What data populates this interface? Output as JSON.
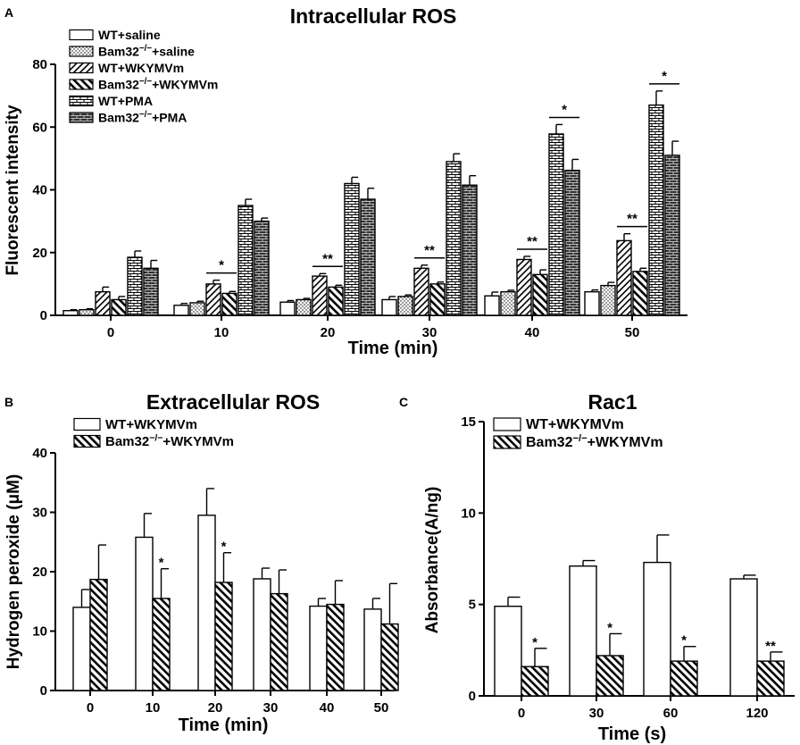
{
  "chart_data": [
    {
      "panel": "A",
      "type": "bar",
      "title": "Intracellular ROS",
      "xlabel": "Time (min)",
      "ylabel": "Fluorescent intensity",
      "ylim": [
        0,
        80
      ],
      "yticks": [
        0,
        20,
        40,
        60,
        80
      ],
      "categories": [
        "0",
        "10",
        "20",
        "30",
        "40",
        "50"
      ],
      "series": [
        {
          "name_main": "WT+saline",
          "name_sup": "",
          "name_tail": "",
          "pattern": "white",
          "values": [
            1.5,
            3.2,
            4.2,
            5.0,
            6.2,
            7.5
          ],
          "errors": [
            0.3,
            0.6,
            0.5,
            1.0,
            1.2,
            0.6
          ]
        },
        {
          "name_main": "Bam32",
          "name_sup": "−/−",
          "name_tail": "+saline",
          "pattern": "dots",
          "values": [
            1.8,
            4.0,
            5.0,
            6.0,
            7.5,
            9.5
          ],
          "errors": [
            0.3,
            0.5,
            0.4,
            0.5,
            0.5,
            1.0
          ]
        },
        {
          "name_main": "WT+WKYMVm",
          "name_sup": "",
          "name_tail": "",
          "pattern": "diag",
          "values": [
            7.5,
            10.0,
            12.5,
            15.0,
            17.8,
            23.8
          ],
          "errors": [
            1.5,
            1.2,
            0.8,
            1.0,
            1.0,
            2.2
          ]
        },
        {
          "name_main": "Bam32",
          "name_sup": "−/−",
          "name_tail": "+WKYMVm",
          "pattern": "bdiag",
          "values": [
            5.0,
            7.0,
            9.0,
            10.0,
            13.0,
            14.0
          ],
          "errors": [
            1.0,
            0.6,
            0.6,
            0.6,
            1.5,
            1.0
          ]
        },
        {
          "name_main": "WT+PMA",
          "name_sup": "",
          "name_tail": "",
          "pattern": "brick",
          "values": [
            18.5,
            35.0,
            42.0,
            49.0,
            57.8,
            67.0
          ],
          "errors": [
            2.0,
            2.0,
            2.0,
            2.5,
            3.0,
            4.5
          ]
        },
        {
          "name_main": "Bam32",
          "name_sup": "−/−",
          "name_tail": "+PMA",
          "pattern": "darkbrick",
          "values": [
            15.0,
            30.0,
            37.0,
            41.5,
            46.2,
            51.0
          ],
          "errors": [
            2.5,
            1.0,
            3.5,
            3.0,
            3.5,
            4.5
          ]
        }
      ],
      "annotations": [
        {
          "category": 1,
          "label": "*"
        },
        {
          "category": 2,
          "label": "**"
        },
        {
          "category": 3,
          "label": "**"
        },
        {
          "category": 4,
          "label": "**"
        },
        {
          "category": 4,
          "label": "*"
        },
        {
          "category": 5,
          "label": "**"
        },
        {
          "category": 5,
          "label": "*"
        }
      ]
    },
    {
      "panel": "B",
      "type": "bar",
      "title": "Extracellular ROS",
      "xlabel": "Time (min)",
      "ylabel": "Hydrogen peroxide (μM)",
      "ylim": [
        0,
        40
      ],
      "yticks": [
        0,
        10,
        20,
        30,
        40
      ],
      "categories": [
        "0",
        "10",
        "20",
        "30",
        "40",
        "50"
      ],
      "series": [
        {
          "name_main": "WT+WKYMVm",
          "name_sup": "",
          "name_tail": "",
          "pattern": "white",
          "values": [
            14.0,
            25.8,
            29.5,
            18.8,
            14.2,
            13.7
          ],
          "errors": [
            3.0,
            4.0,
            4.5,
            1.8,
            1.3,
            1.8
          ]
        },
        {
          "name_main": "Bam32",
          "name_sup": "−/−",
          "name_tail": "+WKYMVm",
          "pattern": "bdiag",
          "values": [
            18.7,
            15.5,
            18.2,
            16.3,
            14.5,
            11.2
          ],
          "errors": [
            5.8,
            5.0,
            5.0,
            4.0,
            4.0,
            6.8
          ]
        }
      ],
      "annotations": [
        {
          "category": 1,
          "label": "*"
        },
        {
          "category": 2,
          "label": "*"
        }
      ]
    },
    {
      "panel": "C",
      "type": "bar",
      "title": "Rac1",
      "xlabel": "Time (s)",
      "ylabel": "Absorbance(A/ng)",
      "ylim": [
        0,
        15
      ],
      "yticks": [
        0,
        5,
        10,
        15
      ],
      "categories": [
        "0",
        "30",
        "60",
        "120"
      ],
      "series": [
        {
          "name_main": "WT+WKYMVm",
          "name_sup": "",
          "name_tail": "",
          "pattern": "white",
          "values": [
            4.9,
            7.1,
            7.3,
            6.4
          ],
          "errors": [
            0.5,
            0.3,
            1.5,
            0.2
          ]
        },
        {
          "name_main": "Bam32",
          "name_sup": "−/−",
          "name_tail": "+WKYMVm",
          "pattern": "bdiag",
          "values": [
            1.6,
            2.2,
            1.9,
            1.9
          ],
          "errors": [
            1.0,
            1.2,
            0.8,
            0.5
          ]
        }
      ],
      "annotations": [
        {
          "category": 0,
          "label": "*"
        },
        {
          "category": 1,
          "label": "*"
        },
        {
          "category": 2,
          "label": "*"
        },
        {
          "category": 3,
          "label": "**"
        }
      ]
    }
  ]
}
